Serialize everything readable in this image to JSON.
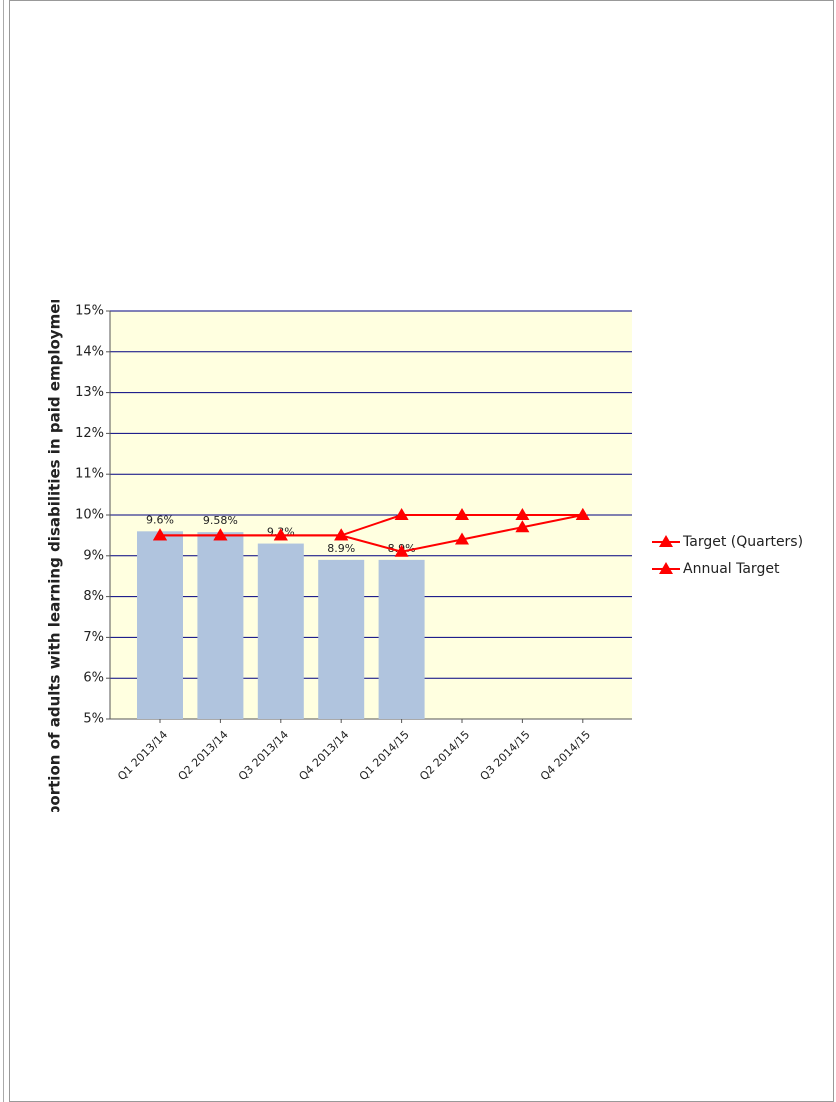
{
  "chart_data": {
    "type": "bar",
    "y_label": "Proportion of adults with learning disabilities in paid employment",
    "categories": [
      "Q1 2013/14",
      "Q2 2013/14",
      "Q3 2013/14",
      "Q4 2013/14",
      "Q1 2014/15",
      "Q2 2014/15",
      "Q3 2014/15",
      "Q4 2014/15"
    ],
    "values": [
      9.6,
      9.58,
      9.3,
      8.9,
      8.9,
      null,
      null,
      null
    ],
    "value_labels": [
      "9.6%",
      "9.58%",
      "9.3%",
      "8.9%",
      "8.9%",
      null,
      null,
      null
    ],
    "color": "#b0c4de",
    "series": [
      {
        "name": "Target (Quarters)",
        "color": "#ff0000",
        "values": [
          9.5,
          9.5,
          9.5,
          9.5,
          9.1,
          9.4,
          9.7,
          10
        ]
      },
      {
        "name": "Annual Target",
        "color": "#ff0000",
        "values": [
          9.5,
          9.5,
          9.5,
          9.5,
          10,
          10,
          10,
          10
        ]
      }
    ],
    "ylim": [
      5,
      15
    ],
    "yticks": [
      {
        "value": 5,
        "label": "5%"
      },
      {
        "value": 6,
        "label": "6%"
      },
      {
        "value": 7,
        "label": "7%"
      },
      {
        "value": 8,
        "label": "8%"
      },
      {
        "value": 9,
        "label": "9%"
      },
      {
        "value": 10,
        "label": "10%"
      },
      {
        "value": 11,
        "label": "11%"
      },
      {
        "value": 12,
        "label": "12%"
      },
      {
        "value": 13,
        "label": "13%"
      },
      {
        "value": 14,
        "label": "14%"
      },
      {
        "value": 15,
        "label": "15%"
      }
    ],
    "grid": true,
    "legend": "right"
  }
}
